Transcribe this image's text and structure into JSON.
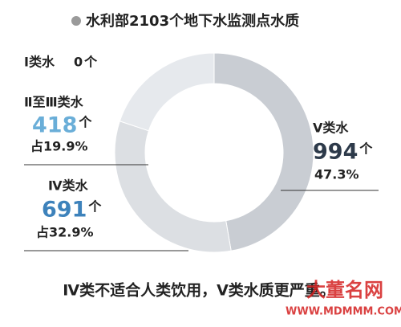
{
  "chart_data": {
    "type": "pie",
    "title": "水利部2103个地下水监测点水质",
    "categories": [
      "Ⅰ类水",
      "Ⅱ至Ⅲ类水",
      "Ⅳ类水",
      "Ⅴ类水"
    ],
    "values": [
      0,
      418,
      691,
      994
    ],
    "unit": "个",
    "percents": [
      null,
      19.9,
      32.9,
      47.3
    ],
    "percent_labels": [
      null,
      "占19.9%",
      "占32.9%",
      "47.3%"
    ],
    "colors": [
      "#f0f2f4",
      "#e6e9ed",
      "#dcdfe3",
      "#c9cdd3"
    ],
    "value_colors": [
      "#222222",
      "#6aaed8",
      "#3d82bb",
      "#2d3a4a"
    ],
    "footnote": "Ⅳ类不适合人类饮用，Ⅴ类水质更严重。",
    "watermark": "大董名网",
    "watermark_url": "WWW.MDMMM.COM"
  }
}
